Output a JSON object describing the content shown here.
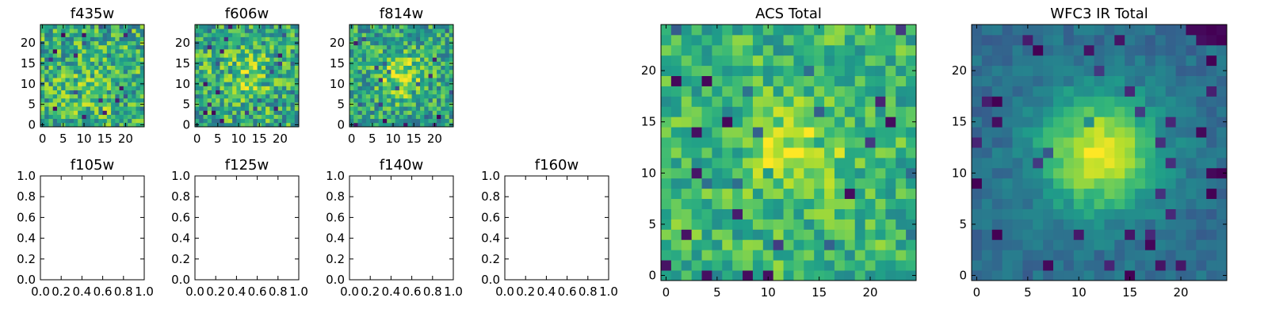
{
  "chart_data": [
    {
      "id": "f435w",
      "type": "heatmap",
      "title": "f435w",
      "grid_size": 25,
      "colormap": "viridis",
      "xlim": [
        -0.5,
        24.5
      ],
      "ylim": [
        -0.5,
        24.5
      ],
      "xticks": [
        0,
        5,
        10,
        15,
        20
      ],
      "yticks": [
        0,
        5,
        10,
        15,
        20
      ],
      "texture": {
        "seed": 11,
        "base": 0.62,
        "noise": 0.55,
        "peak": 0.1,
        "peak_x": 12,
        "peak_y": 8,
        "peak_sigma": 5
      },
      "spots": [
        {
          "x": 3,
          "y": 18,
          "v": 0.02
        },
        {
          "x": 10,
          "y": 22,
          "v": 0.05
        },
        {
          "x": 18,
          "y": 6,
          "v": 0.08
        }
      ]
    },
    {
      "id": "f606w",
      "type": "heatmap",
      "title": "f606w",
      "grid_size": 25,
      "colormap": "viridis",
      "xlim": [
        -0.5,
        24.5
      ],
      "ylim": [
        -0.5,
        24.5
      ],
      "xticks": [
        0,
        5,
        10,
        15,
        20
      ],
      "yticks": [
        0,
        5,
        10,
        15,
        20
      ],
      "texture": {
        "seed": 23,
        "base": 0.6,
        "noise": 0.55,
        "peak": 0.18,
        "peak_x": 11,
        "peak_y": 12,
        "peak_sigma": 5
      },
      "spots": [
        {
          "x": 2,
          "y": 3,
          "v": 0.03
        },
        {
          "x": 20,
          "y": 17,
          "v": 0.06
        }
      ]
    },
    {
      "id": "f814w",
      "type": "heatmap",
      "title": "f814w",
      "grid_size": 25,
      "colormap": "viridis",
      "xlim": [
        -0.5,
        24.5
      ],
      "ylim": [
        -0.5,
        24.5
      ],
      "xticks": [
        0,
        5,
        10,
        15,
        20
      ],
      "yticks": [
        0,
        5,
        10,
        15,
        20
      ],
      "texture": {
        "seed": 37,
        "base": 0.58,
        "noise": 0.5,
        "peak": 0.3,
        "peak_x": 12,
        "peak_y": 12,
        "peak_sigma": 4
      },
      "spots": [
        {
          "x": 8,
          "y": 1,
          "v": 0.02
        },
        {
          "x": 13,
          "y": 0,
          "v": 0.05
        }
      ]
    },
    {
      "id": "f105w",
      "type": "empty",
      "title": "f105w",
      "xlim": [
        0,
        1
      ],
      "ylim": [
        0,
        1
      ],
      "xticks": [
        "0.0",
        "0.2",
        "0.4",
        "0.6",
        "0.8",
        "1.0"
      ],
      "yticks": [
        "0.0",
        "0.2",
        "0.4",
        "0.6",
        "0.8",
        "1.0"
      ]
    },
    {
      "id": "f125w",
      "type": "empty",
      "title": "f125w",
      "xlim": [
        0,
        1
      ],
      "ylim": [
        0,
        1
      ],
      "xticks": [
        "0.0",
        "0.2",
        "0.4",
        "0.6",
        "0.8",
        "1.0"
      ],
      "yticks": [
        "0.0",
        "0.2",
        "0.4",
        "0.6",
        "0.8",
        "1.0"
      ]
    },
    {
      "id": "f140w",
      "type": "empty",
      "title": "f140w",
      "xlim": [
        0,
        1
      ],
      "ylim": [
        0,
        1
      ],
      "xticks": [
        "0.0",
        "0.2",
        "0.4",
        "0.6",
        "0.8",
        "1.0"
      ],
      "yticks": [
        "0.0",
        "0.2",
        "0.4",
        "0.6",
        "0.8",
        "1.0"
      ]
    },
    {
      "id": "f160w",
      "type": "empty",
      "title": "f160w",
      "xlim": [
        0,
        1
      ],
      "ylim": [
        0,
        1
      ],
      "xticks": [
        "0.0",
        "0.2",
        "0.4",
        "0.6",
        "0.8",
        "1.0"
      ],
      "yticks": [
        "0.0",
        "0.2",
        "0.4",
        "0.6",
        "0.8",
        "1.0"
      ]
    },
    {
      "id": "acs-total",
      "type": "heatmap",
      "title": "ACS Total",
      "grid_size": 25,
      "colormap": "viridis",
      "xlim": [
        -0.5,
        24.5
      ],
      "ylim": [
        -0.5,
        24.5
      ],
      "xticks": [
        0,
        5,
        10,
        15,
        20
      ],
      "yticks": [
        0,
        5,
        10,
        15,
        20
      ],
      "texture": {
        "seed": 53,
        "base": 0.66,
        "noise": 0.38,
        "peak": 0.28,
        "peak_x": 13,
        "peak_y": 12,
        "peak_sigma": 3
      },
      "spots": [
        {
          "x": 1,
          "y": 19,
          "v": 0.02
        },
        {
          "x": 4,
          "y": 19,
          "v": 0.02
        },
        {
          "x": 6,
          "y": 15,
          "v": 0.02
        },
        {
          "x": 3,
          "y": 14,
          "v": 0.04
        },
        {
          "x": 22,
          "y": 15,
          "v": 0.03
        },
        {
          "x": 21,
          "y": 17,
          "v": 0.1
        },
        {
          "x": 18,
          "y": 8,
          "v": 0.03
        },
        {
          "x": 0,
          "y": 1,
          "v": 0.05
        },
        {
          "x": 4,
          "y": 0,
          "v": 0.04
        },
        {
          "x": 8,
          "y": 0,
          "v": 0.03
        },
        {
          "x": 10,
          "y": 0,
          "v": 0.04
        },
        {
          "x": 3,
          "y": 10,
          "v": 0.06
        },
        {
          "x": 7,
          "y": 6,
          "v": 0.08
        },
        {
          "x": 2,
          "y": 4,
          "v": 0.05
        }
      ]
    },
    {
      "id": "wfc3-ir-total",
      "type": "heatmap",
      "title": "WFC3 IR Total",
      "grid_size": 25,
      "colormap": "viridis",
      "xlim": [
        -0.5,
        24.5
      ],
      "ylim": [
        -0.5,
        24.5
      ],
      "xticks": [
        0,
        5,
        10,
        15,
        20
      ],
      "yticks": [
        0,
        5,
        10,
        15,
        20
      ],
      "texture": {
        "seed": 71,
        "base": 0.36,
        "noise": 0.16,
        "peak": 0.6,
        "peak_x": 12,
        "peak_y": 12,
        "peak_sigma": 4
      },
      "spots": [
        {
          "x": 21,
          "y": 24,
          "v": 0.02
        },
        {
          "x": 22,
          "y": 24,
          "v": 0.02
        },
        {
          "x": 23,
          "y": 24,
          "v": 0.0
        },
        {
          "x": 24,
          "y": 24,
          "v": 0.02
        },
        {
          "x": 22,
          "y": 23,
          "v": 0.04
        },
        {
          "x": 23,
          "y": 23,
          "v": 0.02
        },
        {
          "x": 11,
          "y": 22,
          "v": 0.05
        },
        {
          "x": 18,
          "y": 1,
          "v": 0.05
        },
        {
          "x": 20,
          "y": 1,
          "v": 0.06
        },
        {
          "x": 1,
          "y": 17,
          "v": 0.08
        },
        {
          "x": 0,
          "y": 13,
          "v": 0.1
        }
      ]
    }
  ]
}
